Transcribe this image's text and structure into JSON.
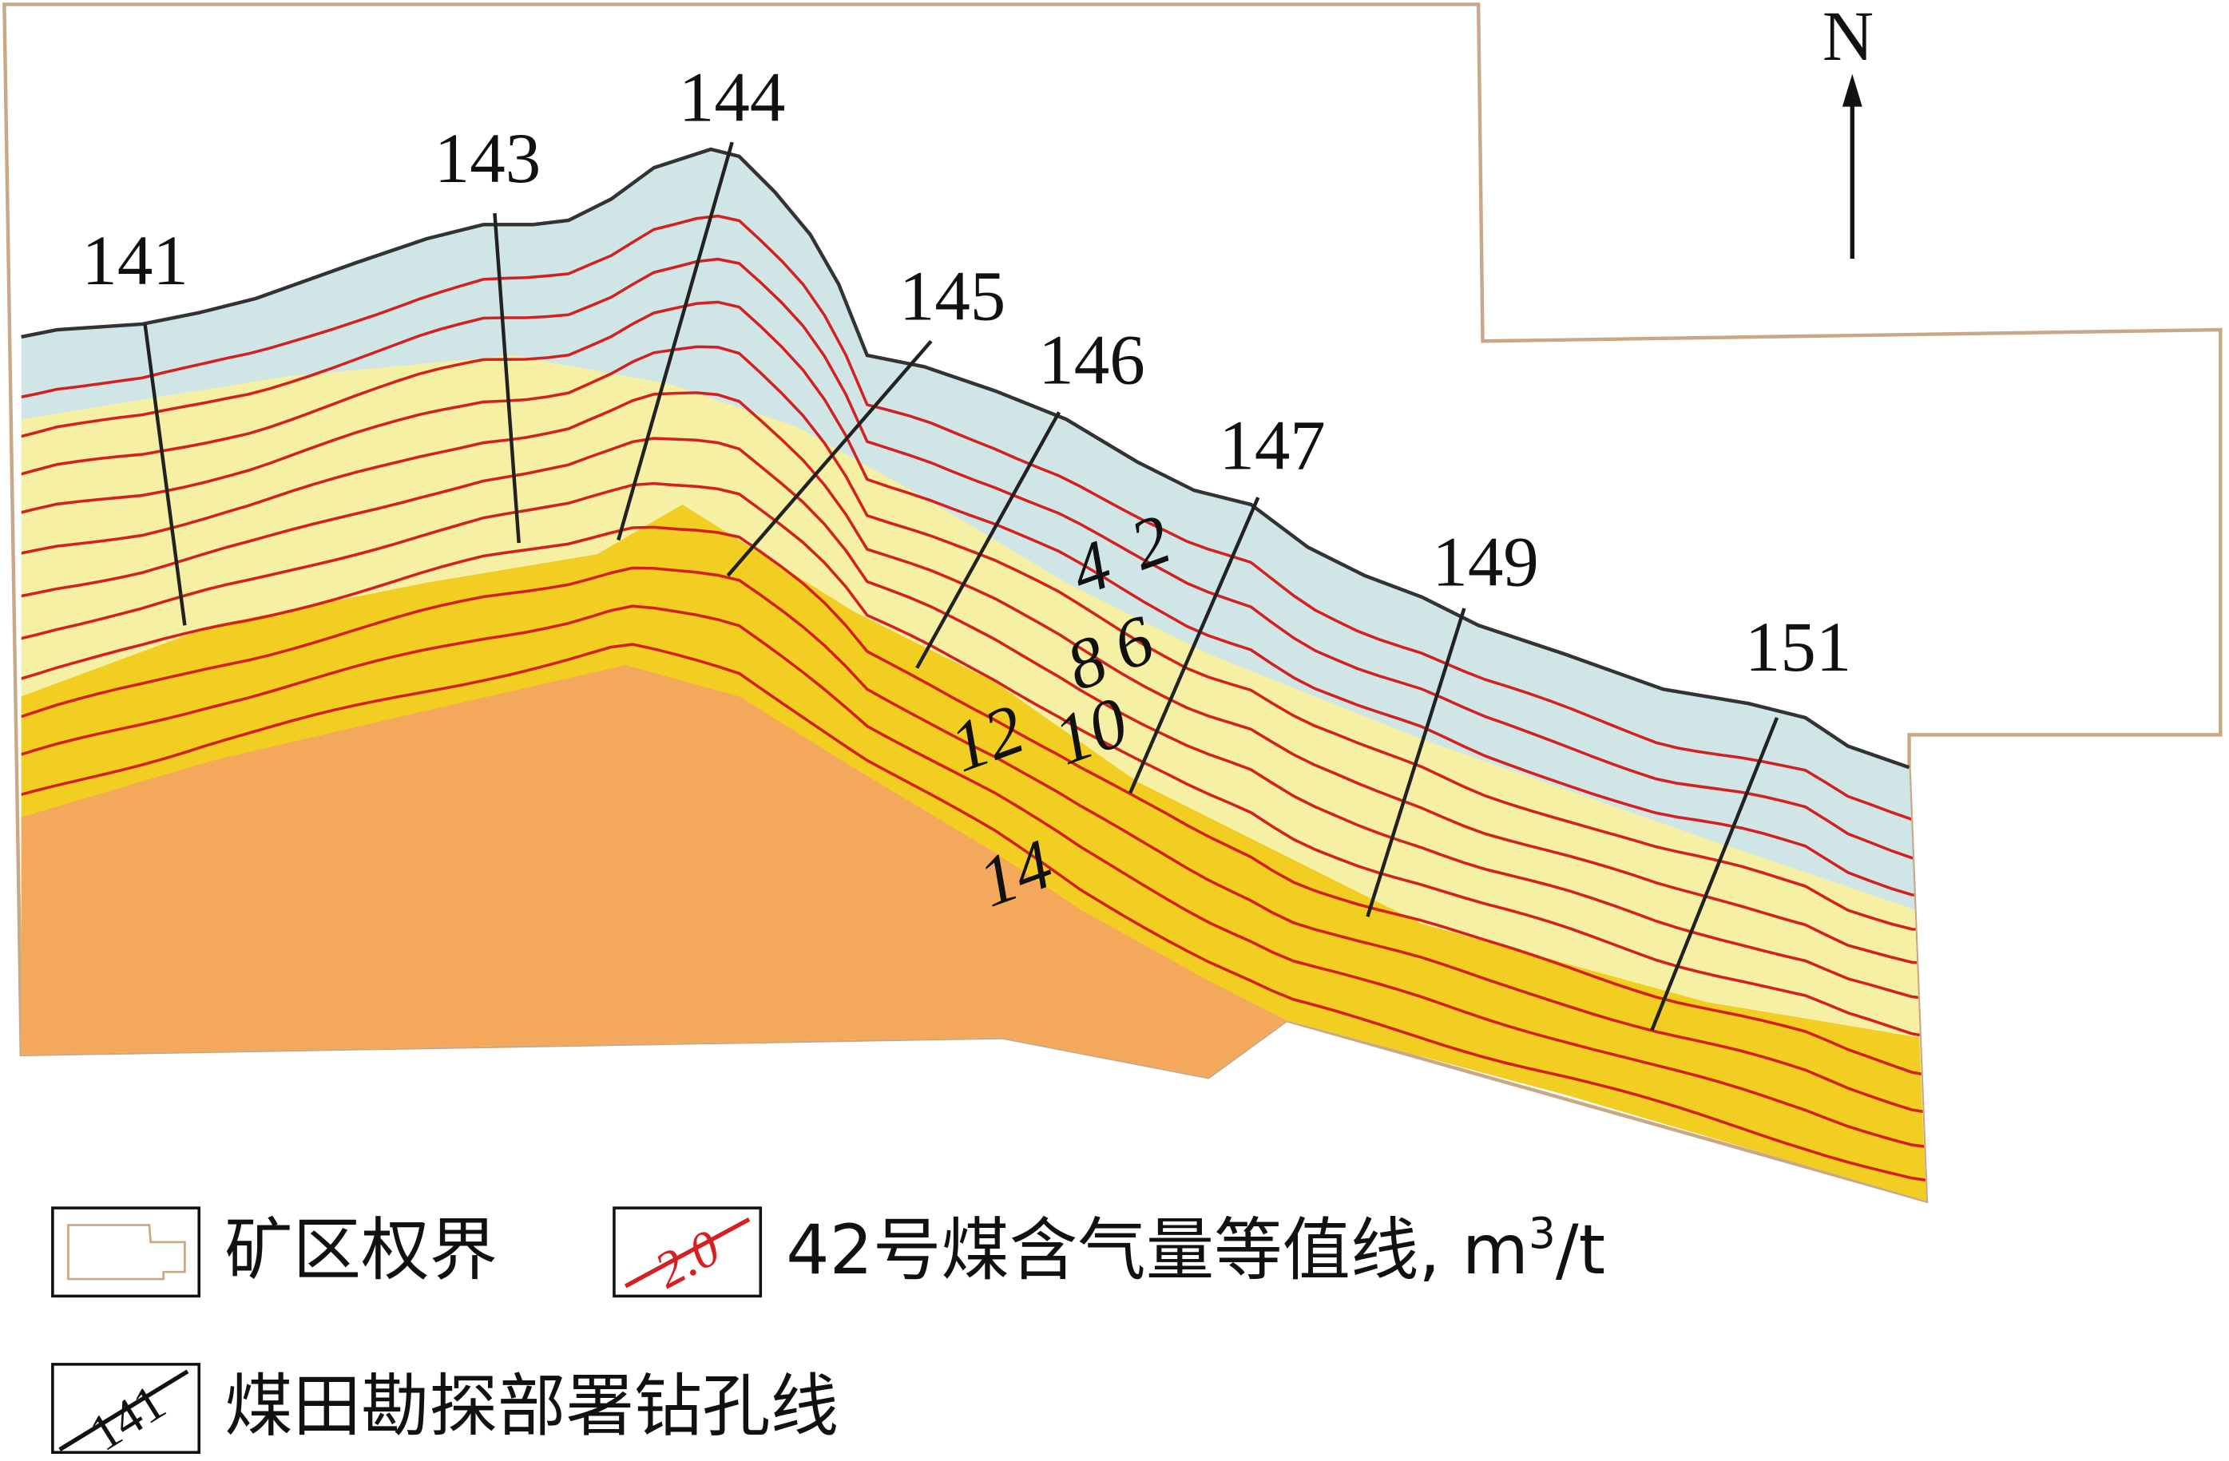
{
  "north": "N",
  "boreholes": [
    "141",
    "143",
    "144",
    "145",
    "146",
    "147",
    "149",
    "151"
  ],
  "contour_labels": [
    "2",
    "4",
    "6",
    "8",
    "10",
    "12",
    "14"
  ],
  "legend": {
    "boundary": "矿区权界",
    "contour_sample": "2.0",
    "contour": {
      "text": "42号煤含气量等值线, m",
      "superscript": "3",
      "suffix": "/t"
    },
    "borehole_sample": "141",
    "borehole": "煤田勘探部署钻孔线"
  }
}
